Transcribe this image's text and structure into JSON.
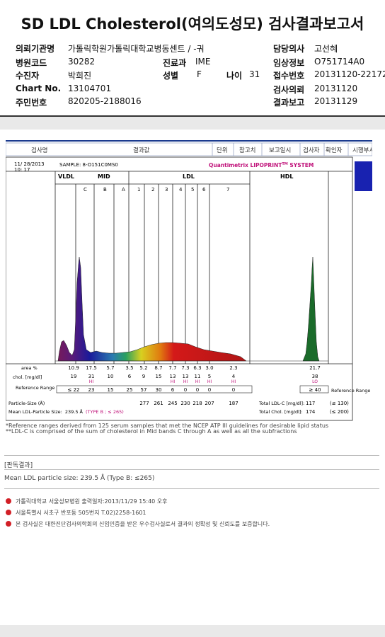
{
  "title": "SD LDL Cholesterol(여의도성모) 검사결과보고서",
  "info_left": [
    {
      "label": "의뢰기관명",
      "value": "가톨릭학원가톨릭대학교병동센트 / -궈"
    },
    {
      "label": "병원코드",
      "value": "30282"
    },
    {
      "label": "수진자",
      "value": "박희진"
    },
    {
      "label": "Chart No.",
      "value": "13104701"
    },
    {
      "label": "주민번호",
      "value": "820205-2188016"
    }
  ],
  "info_mid": [
    {
      "label": "진료과",
      "value": "IME"
    },
    {
      "label": "성별",
      "value": "F"
    },
    {
      "label": "나이",
      "value": "31"
    }
  ],
  "info_right": [
    {
      "label": "담당의사",
      "value": "고선혜"
    },
    {
      "label": "임상정보",
      "value": "O751714A0"
    },
    {
      "label": "접수번호",
      "value": "20131120-22172"
    },
    {
      "label": "검사의뢰",
      "value": "20131120"
    },
    {
      "label": "결과보고",
      "value": "20131129"
    }
  ],
  "table_header": {
    "c1": "검사명",
    "c2": "결과값",
    "c3": "단위",
    "c4": "참고치",
    "c5": "보고일시",
    "c6": "검사자",
    "c7": "확인자",
    "c8": "시행부서"
  },
  "chart_data": {
    "type": "area",
    "header": {
      "date": "11/ 28/2013",
      "time": "10: 17",
      "sample": "SAMPLE:  8-O151C0MS0",
      "brand": "Quantimetrix LIPOPRINT",
      "tm": "TM",
      "system": " SYSTEM"
    },
    "groups": [
      "VLDL",
      "MID",
      "LDL",
      "HDL"
    ],
    "bands": [
      "C",
      "B",
      "A",
      "1",
      "2",
      "3",
      "4",
      "5",
      "6",
      "7"
    ],
    "area_label": "area %",
    "area_values": [
      "10.9",
      "17.5",
      "5.7",
      "3.5",
      "5.2",
      "8.7",
      "7.7",
      "7.3",
      "6.3",
      "3.0",
      "2.3",
      "21.7"
    ],
    "chol_label": "chol. [mg/dl]",
    "chol_values": [
      "19",
      "31",
      "10",
      "6",
      "9",
      "15",
      "13",
      "13",
      "11",
      "5",
      "4",
      "38"
    ],
    "flags": [
      "",
      "HI",
      "",
      "",
      "",
      "",
      "HI",
      "HI",
      "HI",
      "HI",
      "HI",
      "LO"
    ],
    "ref_label": "Reference Range",
    "ref_values": [
      "≤ 22",
      "23",
      "15",
      "25",
      "57",
      "30",
      "6",
      "0",
      "0",
      "0",
      "0",
      "≥ 40"
    ],
    "ps_label": "Particle-Size (Å)",
    "ps_values": [
      "277",
      "261",
      "245",
      "230",
      "218",
      "207",
      "187"
    ],
    "mean_label": "Mean LDL-Particle Size:",
    "mean_value": "239.5 Å",
    "mean_type": "(TYPE B ; ≤ 265)",
    "total_ldl_label": "Total LDL-C [mg/dl]:",
    "total_ldl_value": "117",
    "total_ldl_ref": "(≤ 130)",
    "total_chol_label": "Total Chol. [mg/dl]:",
    "total_chol_value": "174",
    "total_chol_ref": "(≤ 200)",
    "footnote1": "*Reference ranges derived from 125 serum samples that met the NCEP ATP III guidelines for desirable lipid status",
    "footnote2": "**LDL-C is comprised of the sum of cholesterol in Mid bands C through A as well as all the subfractions",
    "colors": {
      "vldl": "#6d1a4f",
      "mid": "#2a2a9a",
      "ldl": "#d41919",
      "hdl": "#1a6b2a",
      "accent": "#c0127a"
    }
  },
  "result": {
    "title": "[판독결과]",
    "text": "Mean LDL particle size: 239.5 Å (Type B: ≤265)"
  },
  "notes": [
    "가톨릭대학교 서울성모병원       출력일자:2013/11/29 15:40 오후",
    "서울특별시 서초구 반포동 505번지 T.02)2258-1601",
    "본 검사실은 대한진단검사의학회의 신임인증을 받은 우수검사실로서 결과의 정확성 및 신뢰도를 보증합니다."
  ]
}
